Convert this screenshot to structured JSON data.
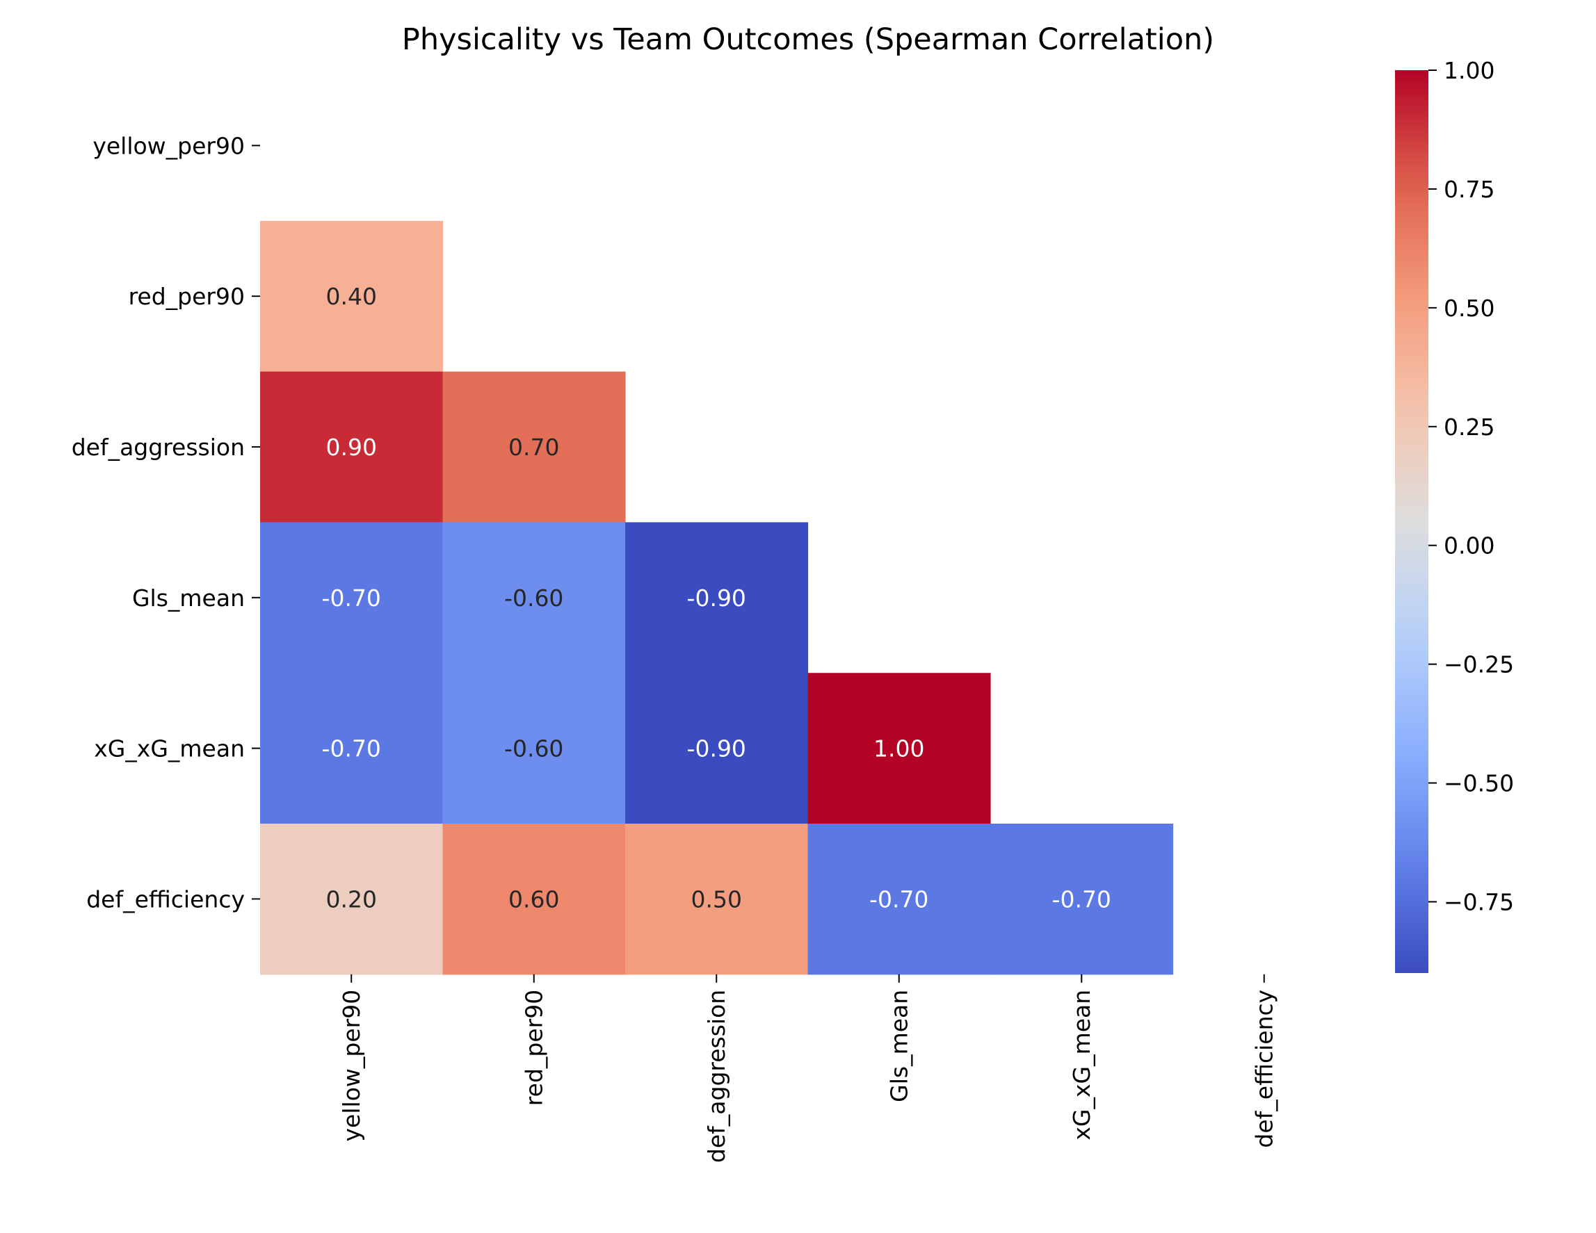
{
  "chart_data": {
    "type": "heatmap",
    "title": "Physicality vs Team Outcomes (Spearman Correlation)",
    "xlabel": "",
    "ylabel": "",
    "row_labels": [
      "yellow_per90",
      "red_per90",
      "def_aggression",
      "Gls_mean",
      "xG_xG_mean",
      "def_efficiency"
    ],
    "col_labels": [
      "yellow_per90",
      "red_per90",
      "def_aggression",
      "Gls_mean",
      "xG_xG_mean",
      "def_efficiency"
    ],
    "mask": "upper-triangle-including-diagonal",
    "values": [
      [
        null,
        null,
        null,
        null,
        null,
        null
      ],
      [
        0.4,
        null,
        null,
        null,
        null,
        null
      ],
      [
        0.9,
        0.7,
        null,
        null,
        null,
        null
      ],
      [
        -0.7,
        -0.6,
        -0.9,
        null,
        null,
        null
      ],
      [
        -0.7,
        -0.6,
        -0.9,
        1.0,
        null,
        null
      ],
      [
        0.2,
        0.6,
        0.5,
        -0.7,
        -0.7,
        null
      ]
    ],
    "cell_labels": [
      [
        null,
        null,
        null,
        null,
        null,
        null
      ],
      [
        "0.40",
        null,
        null,
        null,
        null,
        null
      ],
      [
        "0.90",
        "0.70",
        null,
        null,
        null,
        null
      ],
      [
        "-0.70",
        "-0.60",
        "-0.90",
        null,
        null,
        null
      ],
      [
        "-0.70",
        "-0.60",
        "-0.90",
        "1.00",
        null,
        null
      ],
      [
        "0.20",
        "0.60",
        "0.50",
        "-0.70",
        "-0.70",
        null
      ]
    ],
    "colormap": "coolwarm",
    "colorbar": {
      "vmin": -0.9,
      "vmax": 1.0,
      "ticks": [
        1.0,
        0.75,
        0.5,
        0.25,
        0.0,
        -0.25,
        -0.5,
        -0.75
      ],
      "tick_labels": [
        "1.00",
        "0.75",
        "0.50",
        "0.25",
        "0.00",
        "−0.25",
        "−0.50",
        "−0.75"
      ]
    },
    "grid": false,
    "legend": "colorbar-right"
  }
}
